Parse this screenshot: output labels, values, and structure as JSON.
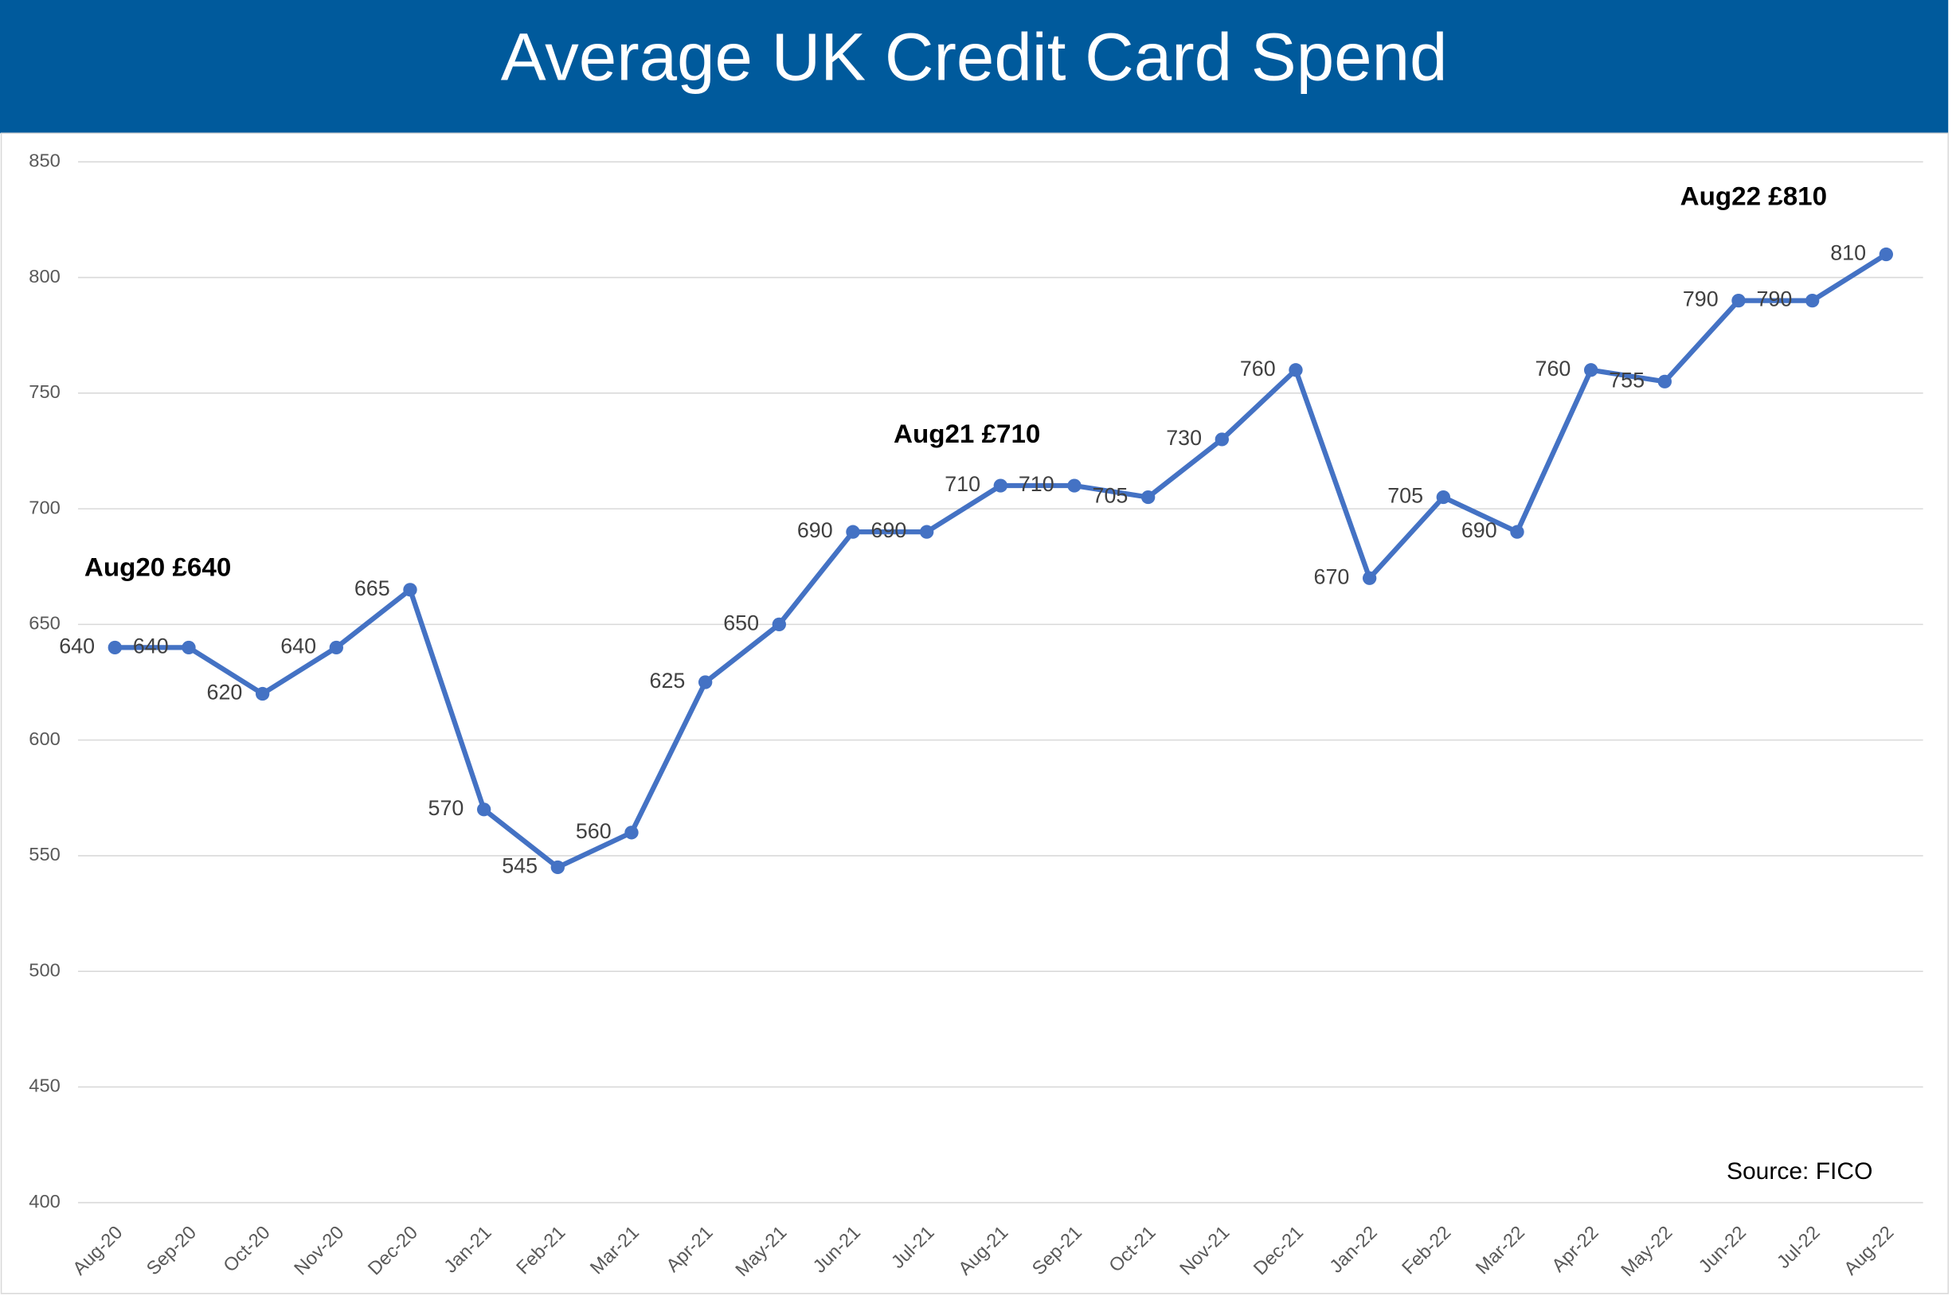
{
  "chart_data": {
    "type": "line",
    "title": "Average UK Credit Card Spend",
    "categories": [
      "Aug-20",
      "Sep-20",
      "Oct-20",
      "Nov-20",
      "Dec-20",
      "Jan-21",
      "Feb-21",
      "Mar-21",
      "Apr-21",
      "May-21",
      "Jun-21",
      "Jul-21",
      "Aug-21",
      "Sep-21",
      "Oct-21",
      "Nov-21",
      "Dec-21",
      "Jan-22",
      "Feb-22",
      "Mar-22",
      "Apr-22",
      "May-22",
      "Jun-22",
      "Jul-22",
      "Aug-22"
    ],
    "values": [
      640,
      640,
      620,
      640,
      665,
      570,
      545,
      560,
      625,
      650,
      690,
      690,
      710,
      710,
      705,
      730,
      760,
      670,
      705,
      690,
      760,
      755,
      790,
      790,
      810
    ],
    "color": "#4472c4",
    "ylim": [
      400,
      850
    ],
    "yticks": [
      400,
      450,
      500,
      550,
      600,
      650,
      700,
      750,
      800,
      850
    ],
    "grid": true,
    "annotations": [
      "Aug20 £640",
      "Aug21 £710",
      "Aug22 £810"
    ],
    "source": "Source: FICO"
  }
}
